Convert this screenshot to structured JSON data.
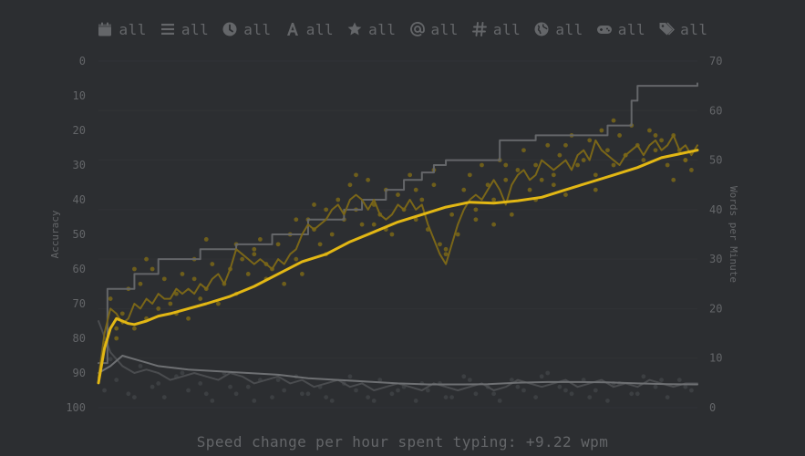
{
  "filters": [
    {
      "icon": "calendar-icon",
      "label": "all"
    },
    {
      "icon": "list-icon",
      "label": "all"
    },
    {
      "icon": "clock-icon",
      "label": "all"
    },
    {
      "icon": "font-icon",
      "label": "all"
    },
    {
      "icon": "star-icon",
      "label": "all"
    },
    {
      "icon": "at-icon",
      "label": "all"
    },
    {
      "icon": "hash-icon",
      "label": "all"
    },
    {
      "icon": "globe-icon",
      "label": "all"
    },
    {
      "icon": "gamepad-icon",
      "label": "all"
    },
    {
      "icon": "tags-icon",
      "label": "all"
    }
  ],
  "footer": {
    "text": "Speed change per hour spent typing: +9.22 wpm"
  },
  "colors": {
    "background": "#2c2e31",
    "accent": "#e2b714",
    "accent_dim": "#7a6618",
    "sub": "#646669",
    "gray_line": "#5c5e61"
  },
  "chart_data": {
    "type": "line",
    "x_axis": {
      "label": "",
      "range": [
        0,
        100
      ],
      "visible": false
    },
    "y_left": {
      "label": "Accuracy",
      "range": [
        100,
        0
      ],
      "reversed": true,
      "ticks": [
        0,
        10,
        20,
        30,
        40,
        50,
        60,
        70,
        80,
        90,
        100
      ]
    },
    "y_right": {
      "label": "Words per Minute",
      "range": [
        0,
        70
      ],
      "ticks": [
        0,
        10,
        20,
        30,
        40,
        50,
        60,
        70
      ]
    },
    "grid": true,
    "legend": "none",
    "series": [
      {
        "id": "pb",
        "style": "step",
        "axis": "right",
        "color": "#646669",
        "x": [
          0,
          1.5,
          6,
          10,
          17,
          23,
          29,
          35,
          41,
          44,
          48,
          51,
          54,
          56,
          58,
          67,
          73,
          85,
          89,
          90,
          100
        ],
        "values": [
          9,
          24,
          27,
          30,
          32,
          33,
          35,
          38,
          40,
          42,
          44,
          46,
          47.5,
          49,
          50,
          54,
          55,
          57,
          62,
          65,
          65.5
        ]
      },
      {
        "id": "wpm_avg100",
        "style": "line",
        "axis": "right",
        "color": "#e2b714",
        "x": [
          0,
          1,
          2,
          3,
          4,
          5,
          6,
          8,
          10,
          12,
          15,
          18,
          22,
          26,
          30,
          34,
          38,
          42,
          46,
          50,
          54,
          58,
          62,
          66,
          70,
          74,
          78,
          82,
          86,
          90,
          94,
          98,
          100
        ],
        "values": [
          5,
          12,
          16,
          18,
          17.5,
          17,
          16.8,
          17.5,
          18.5,
          19,
          20,
          21,
          22.5,
          24.5,
          27,
          29.5,
          31,
          33.5,
          35.5,
          37.5,
          39,
          40.5,
          41.5,
          41.3,
          41.8,
          42.5,
          44,
          45.5,
          47,
          48.5,
          50.5,
          51.5,
          52
        ]
      },
      {
        "id": "wpm_avg10",
        "style": "line",
        "axis": "right",
        "color": "#7a6618",
        "x": [
          0,
          1,
          2,
          3,
          4,
          5,
          6,
          7,
          8,
          9,
          10,
          11,
          12,
          13,
          14,
          15,
          16,
          17,
          18,
          19,
          20,
          21,
          22,
          23,
          24,
          25,
          26,
          27,
          28,
          29,
          30,
          31,
          32,
          33,
          34,
          35,
          36,
          37,
          38,
          39,
          40,
          41,
          42,
          43,
          44,
          45,
          46,
          47,
          48,
          49,
          50,
          51,
          52,
          53,
          54,
          55,
          56,
          57,
          58,
          59,
          60,
          61,
          62,
          63,
          64,
          65,
          66,
          67,
          68,
          69,
          70,
          71,
          72,
          73,
          74,
          75,
          76,
          77,
          78,
          79,
          80,
          81,
          82,
          83,
          84,
          85,
          86,
          87,
          88,
          89,
          90,
          91,
          92,
          93,
          94,
          95,
          96,
          97,
          98,
          99,
          100
        ],
        "values": [
          6,
          15,
          20,
          19,
          17,
          18,
          21,
          20,
          22,
          21,
          23,
          22,
          22,
          24,
          23,
          24,
          23,
          25,
          24,
          26,
          27,
          25,
          28,
          32,
          31,
          30,
          29,
          30,
          29,
          28,
          30,
          29,
          31,
          32,
          35,
          37,
          36,
          37,
          38,
          40,
          41,
          39,
          42,
          43,
          42,
          40,
          42,
          39,
          38,
          39,
          41,
          40,
          42,
          40,
          41,
          37,
          34,
          31,
          29,
          33,
          37,
          40,
          42,
          43,
          42,
          44,
          46,
          44,
          41,
          45,
          47,
          48,
          46,
          47,
          50,
          49,
          48,
          49,
          50,
          48,
          51,
          52,
          50,
          54,
          52,
          51,
          50,
          49,
          51,
          52,
          53,
          51,
          53,
          54,
          52,
          53,
          55,
          52,
          53,
          51,
          53
        ]
      },
      {
        "id": "acc_avg10",
        "style": "line",
        "axis": "left",
        "color": "#4a4c4f",
        "x": [
          0,
          2,
          4,
          6,
          8,
          10,
          12,
          14,
          16,
          18,
          20,
          22,
          24,
          26,
          28,
          30,
          32,
          34,
          36,
          38,
          40,
          42,
          44,
          46,
          48,
          50,
          52,
          54,
          56,
          58,
          60,
          62,
          64,
          66,
          68,
          70,
          72,
          74,
          76,
          78,
          80,
          82,
          84,
          86,
          88,
          90,
          92,
          94,
          96,
          98,
          100
        ],
        "values": [
          75,
          84,
          88,
          90,
          89,
          90,
          92,
          91,
          90,
          91,
          92,
          90,
          91,
          93,
          92,
          91,
          93,
          92,
          94,
          93,
          92,
          94,
          93,
          95,
          94,
          93,
          94,
          95,
          93,
          94,
          95,
          94,
          93,
          95,
          94,
          92,
          93,
          94,
          93,
          92,
          94,
          93,
          92,
          94,
          93,
          94,
          92,
          93,
          94,
          93,
          93
        ]
      },
      {
        "id": "acc_avg100",
        "style": "line",
        "axis": "left",
        "color": "#6e7073",
        "x": [
          0,
          2,
          4,
          6,
          8,
          10,
          15,
          20,
          25,
          30,
          35,
          40,
          45,
          50,
          55,
          60,
          65,
          70,
          75,
          80,
          85,
          90,
          95,
          100
        ],
        "values": [
          90,
          88,
          85,
          86,
          87,
          88,
          89,
          89.5,
          90,
          90.5,
          91.5,
          92,
          92.5,
          93,
          93.3,
          93.3,
          93.2,
          92.8,
          92.6,
          92.6,
          92.7,
          93,
          93.2,
          93.3
        ]
      }
    ],
    "scatter": [
      {
        "id": "wpm_points",
        "axis": "right",
        "color": "#7a6618",
        "x": [
          1,
          2,
          3,
          4,
          5,
          6,
          7,
          8,
          9,
          10,
          11,
          12,
          13,
          14,
          15,
          16,
          17,
          18,
          19,
          20,
          21,
          22,
          23,
          24,
          25,
          26,
          27,
          28,
          29,
          30,
          31,
          32,
          33,
          34,
          35,
          36,
          37,
          38,
          39,
          40,
          41,
          42,
          43,
          44,
          45,
          46,
          47,
          48,
          49,
          50,
          51,
          52,
          53,
          54,
          55,
          56,
          57,
          58,
          59,
          60,
          61,
          62,
          63,
          64,
          65,
          66,
          67,
          68,
          69,
          70,
          71,
          72,
          73,
          74,
          75,
          76,
          77,
          78,
          79,
          80,
          81,
          82,
          83,
          84,
          85,
          86,
          87,
          88,
          89,
          90,
          91,
          92,
          93,
          94,
          95,
          96,
          97,
          98,
          99,
          3,
          8,
          13,
          18,
          23,
          28,
          33,
          38,
          43,
          48,
          53,
          58,
          63,
          68,
          73,
          78,
          83,
          88,
          93,
          98,
          6,
          16,
          26,
          36,
          46,
          56,
          66,
          76,
          86,
          96
        ],
        "values": [
          13,
          22,
          14,
          19,
          24,
          16,
          25,
          18,
          28,
          20,
          26,
          21,
          23,
          27,
          18,
          30,
          22,
          24,
          29,
          21,
          25,
          28,
          33,
          30,
          27,
          31,
          34,
          26,
          28,
          33,
          25,
          35,
          30,
          27,
          38,
          36,
          33,
          40,
          35,
          42,
          38,
          45,
          40,
          37,
          46,
          41,
          39,
          44,
          35,
          43,
          40,
          47,
          38,
          42,
          36,
          45,
          33,
          31,
          39,
          35,
          44,
          47,
          40,
          49,
          45,
          42,
          50,
          46,
          39,
          48,
          52,
          44,
          49,
          46,
          53,
          47,
          51,
          43,
          55,
          49,
          50,
          54,
          47,
          56,
          52,
          49,
          55,
          51,
          57,
          53,
          50,
          56,
          52,
          54,
          49,
          55,
          52,
          50,
          48,
          16,
          30,
          19,
          34,
          23,
          29,
          38,
          31,
          47,
          36,
          44,
          32,
          38,
          49,
          42,
          53,
          44,
          51,
          55,
          50,
          28,
          26,
          32,
          41,
          37,
          48,
          37,
          45,
          58,
          46
        ]
      },
      {
        "id": "acc_points",
        "axis": "left",
        "color": "#404245",
        "x": [
          1,
          3,
          5,
          7,
          9,
          11,
          13,
          15,
          17,
          19,
          21,
          23,
          25,
          27,
          29,
          31,
          33,
          35,
          37,
          39,
          41,
          43,
          45,
          47,
          49,
          51,
          53,
          55,
          57,
          59,
          61,
          63,
          65,
          67,
          69,
          71,
          73,
          75,
          77,
          79,
          81,
          83,
          85,
          87,
          89,
          91,
          93,
          95,
          97,
          99,
          2,
          6,
          10,
          14,
          18,
          22,
          26,
          30,
          34,
          38,
          42,
          46,
          50,
          54,
          58,
          62,
          66,
          70,
          74,
          78,
          82,
          86,
          90,
          94,
          98
        ],
        "values": [
          95,
          92,
          96,
          88,
          94,
          97,
          91,
          95,
          93,
          98,
          90,
          96,
          94,
          92,
          97,
          95,
          91,
          96,
          94,
          98,
          93,
          95,
          97,
          92,
          96,
          94,
          98,
          95,
          93,
          97,
          91,
          96,
          94,
          98,
          92,
          95,
          97,
          90,
          94,
          96,
          92,
          95,
          98,
          93,
          96,
          91,
          94,
          97,
          92,
          95,
          86,
          97,
          93,
          90,
          96,
          94,
          98,
          92,
          96,
          97,
          91,
          98,
          95,
          93,
          97,
          92,
          96,
          94,
          91,
          95,
          97,
          93,
          96,
          92,
          94
        ]
      }
    ]
  }
}
